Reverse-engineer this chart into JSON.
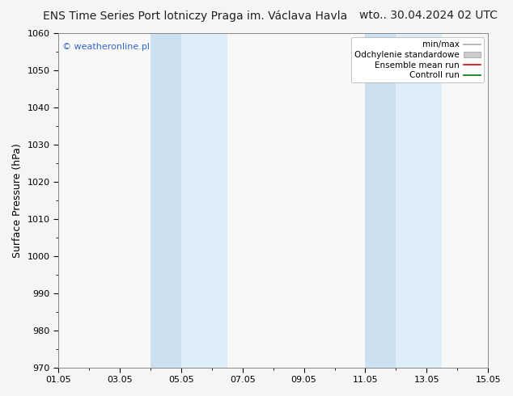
{
  "title": "ENS Time Series Port lotniczy Praga im. Václava Havla",
  "title_date": "wto.. 30.04.2024 02 UTC",
  "ylabel": "Surface Pressure (hPa)",
  "ylim": [
    970,
    1060
  ],
  "yticks": [
    970,
    980,
    990,
    1000,
    1010,
    1020,
    1030,
    1040,
    1050,
    1060
  ],
  "x_start_days": 0,
  "x_end_days": 14,
  "xtick_labels": [
    "01.05",
    "03.05",
    "05.05",
    "07.05",
    "09.05",
    "11.05",
    "13.05",
    "15.05"
  ],
  "xtick_positions": [
    0,
    2,
    4,
    6,
    8,
    10,
    12,
    14
  ],
  "shaded_bands": [
    {
      "x_start": 3.0,
      "x_end": 4.0,
      "color": "#cce0f0"
    },
    {
      "x_start": 4.0,
      "x_end": 5.5,
      "color": "#ddeef8"
    },
    {
      "x_start": 10.0,
      "x_end": 11.0,
      "color": "#cce0f0"
    },
    {
      "x_start": 11.0,
      "x_end": 12.5,
      "color": "#ddeef8"
    }
  ],
  "background_color": "#f5f5f5",
  "plot_bg_color": "#f8f8f8",
  "watermark": "© weatheronline.pl",
  "watermark_color": "#3366cc",
  "legend_items": [
    {
      "label": "min/max",
      "color": "#aaaaaa",
      "type": "line"
    },
    {
      "label": "Odchylenie standardowe",
      "color": "#cccccc",
      "type": "fill"
    },
    {
      "label": "Ensemble mean run",
      "color": "#dd0000",
      "type": "line"
    },
    {
      "label": "Controll run",
      "color": "#007700",
      "type": "line"
    }
  ],
  "title_fontsize": 10,
  "axis_label_fontsize": 9,
  "tick_fontsize": 8,
  "legend_fontsize": 7.5
}
